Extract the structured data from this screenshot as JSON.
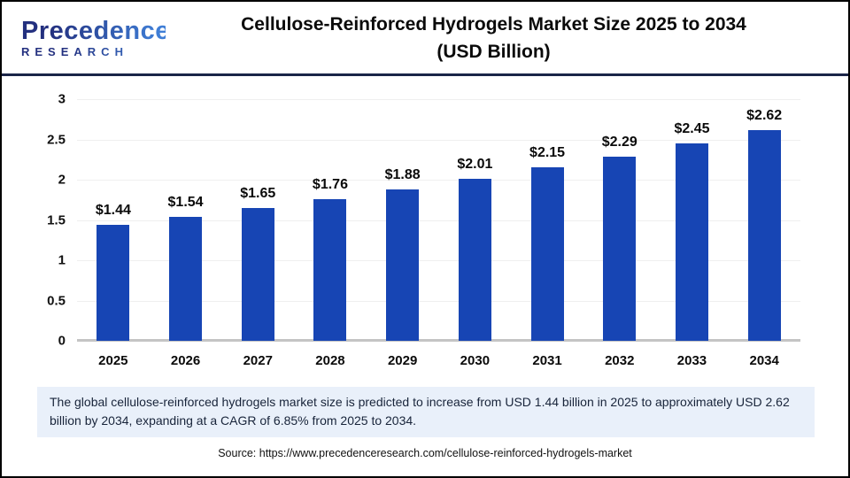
{
  "header": {
    "logo_line1": "Precedence",
    "logo_line2": "RESEARCH",
    "title_line1": "Cellulose-Reinforced Hydrogels Market Size 2025 to 2034",
    "title_line2": "(USD Billion)"
  },
  "chart_data": {
    "type": "bar",
    "title": "Cellulose-Reinforced Hydrogels Market Size 2025 to 2034 (USD Billion)",
    "categories": [
      "2025",
      "2026",
      "2027",
      "2028",
      "2029",
      "2030",
      "2031",
      "2032",
      "2033",
      "2034"
    ],
    "values": [
      1.44,
      1.54,
      1.65,
      1.76,
      1.88,
      2.01,
      2.15,
      2.29,
      2.45,
      2.62
    ],
    "value_labels": [
      "$1.44",
      "$1.54",
      "$1.65",
      "$1.76",
      "$1.88",
      "$2.01",
      "$2.15",
      "$2.29",
      "$2.45",
      "$2.62"
    ],
    "xlabel": "",
    "ylabel": "",
    "ylim": [
      0,
      3
    ],
    "yticks": [
      0,
      0.5,
      1,
      1.5,
      2,
      2.5,
      3
    ],
    "ytick_labels": [
      "0",
      "0.5",
      "1",
      "1.5",
      "2",
      "2.5",
      "3"
    ],
    "grid": true,
    "legend": null,
    "bar_color": "#1745b4"
  },
  "colors": {
    "bar": "#1745b4",
    "divider_navy": "#1a2548",
    "summary_bg": "#e9f0fa",
    "logo_navy": "#23307f",
    "logo_blue": "#3f7ed6"
  },
  "footer": {
    "summary": "The global cellulose-reinforced hydrogels market size is predicted to increase from USD 1.44 billion in 2025 to approximately USD 2.62 billion by 2034, expanding at a CAGR of 6.85% from 2025 to 2034.",
    "source": "Source: https://www.precedenceresearch.com/cellulose-reinforced-hydrogels-market"
  }
}
